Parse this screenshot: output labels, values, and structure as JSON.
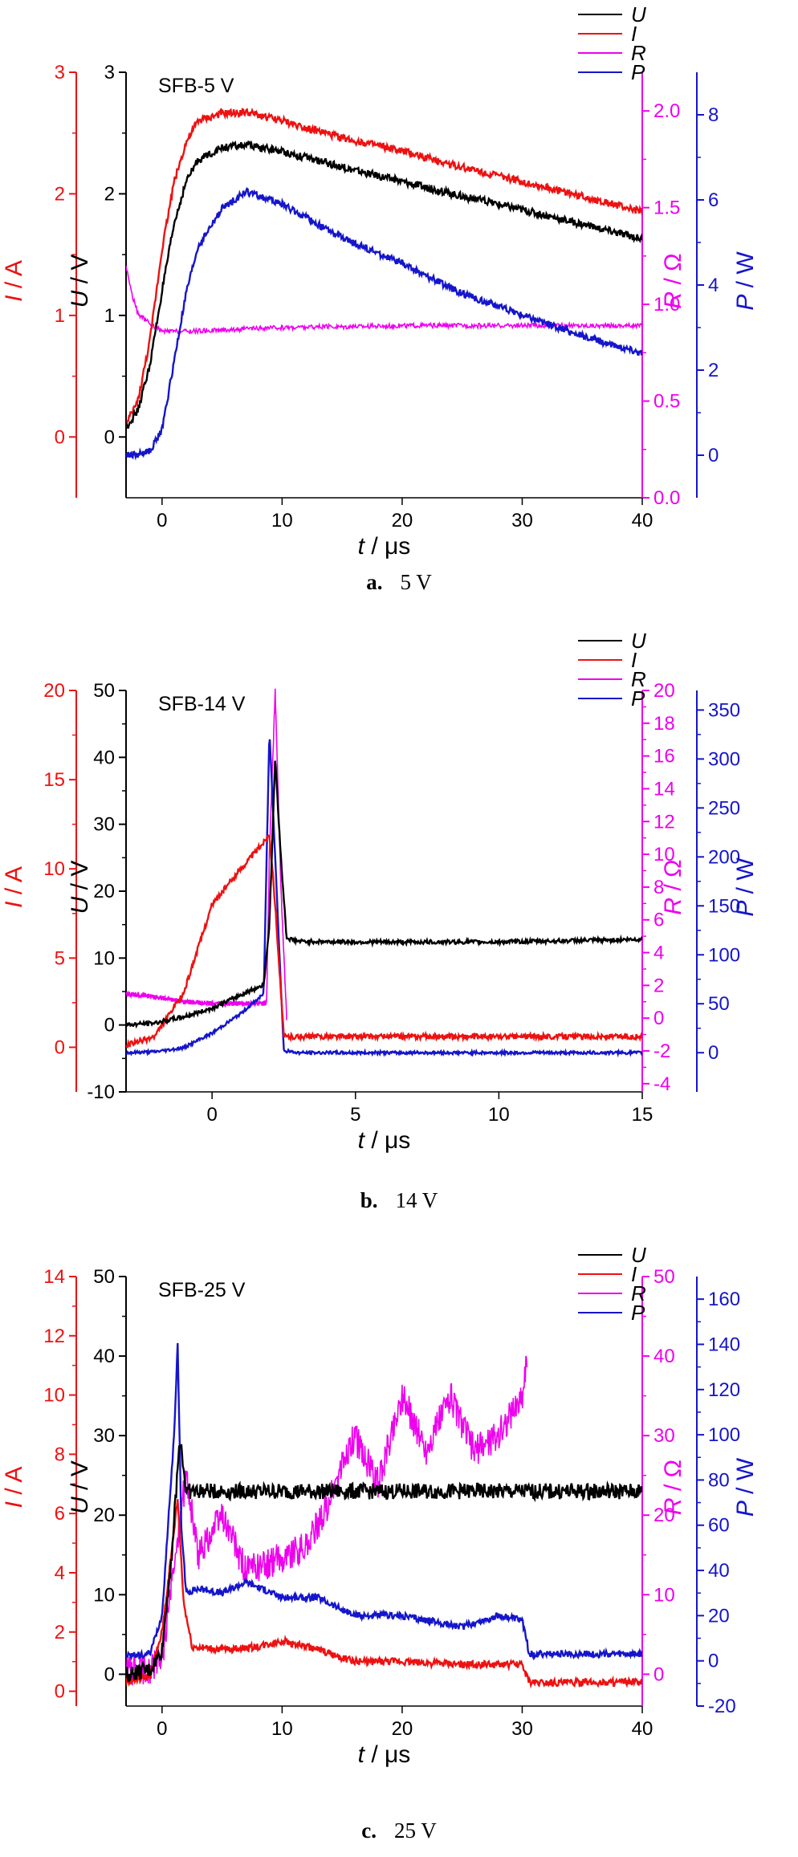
{
  "colors": {
    "U": "#000000",
    "I": "#ee1111",
    "R": "#ee00ee",
    "P": "#1515cc"
  },
  "chart_data": [
    {
      "type": "line",
      "title": "SFB-5 V",
      "caption_letter": "a.",
      "caption_text": "5 V",
      "xlabel": "t / μs",
      "xlim": [
        -3,
        40
      ],
      "xticks": [
        0,
        10,
        20,
        30,
        40
      ],
      "legend": [
        "U",
        "I",
        "R",
        "P"
      ],
      "legend_position": "top-right",
      "axes": {
        "I": {
          "label": "I / A",
          "lim": [
            -0.5,
            3
          ],
          "ticks": [
            0,
            1,
            2,
            3
          ]
        },
        "U": {
          "label": "U / V",
          "lim": [
            -0.5,
            3
          ],
          "ticks": [
            0,
            1,
            2,
            3
          ]
        },
        "R": {
          "label": "R / Ω",
          "lim": [
            0.0,
            2.2
          ],
          "ticks": [
            0.0,
            0.5,
            1.0,
            1.5,
            2.0
          ],
          "decimals": 1
        },
        "P": {
          "label": "P / W",
          "lim": [
            -1,
            9
          ],
          "ticks": [
            0,
            2,
            4,
            6,
            8
          ]
        }
      },
      "series": [
        {
          "name": "U",
          "axis": "U",
          "noise": 0.03,
          "points": [
            [
              -3,
              0.08
            ],
            [
              -2,
              0.22
            ],
            [
              -1,
              0.6
            ],
            [
              0,
              1.2
            ],
            [
              1,
              1.75
            ],
            [
              2,
              2.1
            ],
            [
              3,
              2.28
            ],
            [
              5,
              2.38
            ],
            [
              7,
              2.4
            ],
            [
              10,
              2.35
            ],
            [
              15,
              2.22
            ],
            [
              20,
              2.1
            ],
            [
              25,
              1.98
            ],
            [
              30,
              1.87
            ],
            [
              35,
              1.75
            ],
            [
              40,
              1.63
            ]
          ]
        },
        {
          "name": "I",
          "axis": "I",
          "noise": 0.03,
          "points": [
            [
              -3,
              0.1
            ],
            [
              -2,
              0.3
            ],
            [
              -1,
              0.8
            ],
            [
              0,
              1.55
            ],
            [
              1,
              2.1
            ],
            [
              2,
              2.42
            ],
            [
              3,
              2.6
            ],
            [
              5,
              2.66
            ],
            [
              7,
              2.67
            ],
            [
              10,
              2.6
            ],
            [
              15,
              2.46
            ],
            [
              20,
              2.35
            ],
            [
              25,
              2.22
            ],
            [
              30,
              2.1
            ],
            [
              35,
              1.98
            ],
            [
              40,
              1.85
            ]
          ]
        },
        {
          "name": "R",
          "axis": "R",
          "noise": 0.012,
          "points": [
            [
              -3,
              1.2
            ],
            [
              -2.5,
              1.05
            ],
            [
              -2,
              0.95
            ],
            [
              -1,
              0.9
            ],
            [
              0,
              0.86
            ],
            [
              2,
              0.86
            ],
            [
              10,
              0.88
            ],
            [
              20,
              0.89
            ],
            [
              30,
              0.89
            ],
            [
              40,
              0.89
            ]
          ]
        },
        {
          "name": "P",
          "axis": "P",
          "noise": 0.08,
          "points": [
            [
              -3,
              0.0
            ],
            [
              -2,
              0.02
            ],
            [
              -1,
              0.1
            ],
            [
              0,
              0.6
            ],
            [
              1,
              2.2
            ],
            [
              2,
              3.8
            ],
            [
              3,
              4.9
            ],
            [
              5,
              5.8
            ],
            [
              7,
              6.2
            ],
            [
              10,
              5.9
            ],
            [
              15,
              5.1
            ],
            [
              20,
              4.5
            ],
            [
              25,
              3.8
            ],
            [
              30,
              3.3
            ],
            [
              35,
              2.8
            ],
            [
              40,
              2.4
            ]
          ]
        }
      ]
    },
    {
      "type": "line",
      "title": "SFB-14 V",
      "caption_letter": "b.",
      "caption_text": "14 V",
      "xlabel": "t / μs",
      "xlim": [
        -3,
        15
      ],
      "xticks": [
        0,
        5,
        10,
        15
      ],
      "legend": [
        "U",
        "I",
        "R",
        "P"
      ],
      "legend_position": "top-right",
      "axes": {
        "I": {
          "label": "I / A",
          "lim": [
            -2.5,
            20
          ],
          "ticks": [
            0,
            5,
            10,
            15,
            20
          ]
        },
        "U": {
          "label": "U / V",
          "lim": [
            -10,
            50
          ],
          "ticks": [
            -10,
            0,
            10,
            20,
            30,
            40,
            50
          ]
        },
        "R": {
          "label": "R / Ω",
          "lim": [
            -4.5,
            20
          ],
          "ticks": [
            -4,
            -2,
            0,
            2,
            4,
            6,
            8,
            10,
            12,
            14,
            16,
            18,
            20
          ]
        },
        "P": {
          "label": "P / W",
          "lim": [
            -40,
            370
          ],
          "ticks": [
            0,
            50,
            100,
            150,
            200,
            250,
            300,
            350
          ]
        }
      },
      "series": [
        {
          "name": "U",
          "axis": "U",
          "noise": 0.3,
          "points": [
            [
              -3,
              0.0
            ],
            [
              -2,
              0.3
            ],
            [
              -1,
              1.2
            ],
            [
              0,
              2.5
            ],
            [
              1,
              4.5
            ],
            [
              1.8,
              6
            ],
            [
              2.0,
              15
            ],
            [
              2.2,
              40
            ],
            [
              2.4,
              25
            ],
            [
              2.6,
              13
            ],
            [
              3,
              12.5
            ],
            [
              5,
              12.4
            ],
            [
              10,
              12.4
            ],
            [
              15,
              12.8
            ]
          ]
        },
        {
          "name": "I",
          "axis": "I",
          "noise": 0.15,
          "points": [
            [
              -3,
              0.1
            ],
            [
              -2,
              0.6
            ],
            [
              -1,
              3
            ],
            [
              0,
              8
            ],
            [
              1,
              10
            ],
            [
              1.8,
              11.5
            ],
            [
              2.0,
              12
            ],
            [
              2.2,
              8
            ],
            [
              2.5,
              0.6
            ],
            [
              3,
              0.6
            ],
            [
              15,
              0.6
            ]
          ]
        },
        {
          "name": "R",
          "axis": "R",
          "noise": 0.15,
          "points": [
            [
              -3,
              1.5
            ],
            [
              -2,
              1.3
            ],
            [
              -1,
              1.0
            ],
            [
              0,
              0.9
            ],
            [
              1.5,
              0.9
            ],
            [
              1.9,
              0.9
            ],
            [
              2.0,
              10
            ],
            [
              2.2,
              20
            ],
            [
              2.4,
              8
            ],
            [
              2.6,
              0
            ]
          ]
        },
        {
          "name": "P",
          "axis": "P",
          "noise": 1.5,
          "points": [
            [
              -3,
              0
            ],
            [
              -2,
              1
            ],
            [
              -1,
              5
            ],
            [
              0,
              20
            ],
            [
              1,
              40
            ],
            [
              1.8,
              60
            ],
            [
              2.0,
              330
            ],
            [
              2.2,
              200
            ],
            [
              2.5,
              2
            ],
            [
              3,
              0
            ],
            [
              15,
              0
            ]
          ]
        }
      ]
    },
    {
      "type": "line",
      "title": "SFB-25 V",
      "caption_letter": "c.",
      "caption_text": "25 V",
      "xlabel": "t / μs",
      "xlim": [
        -3,
        40
      ],
      "xticks": [
        0,
        10,
        20,
        30,
        40
      ],
      "legend": [
        "U",
        "I",
        "R",
        "P"
      ],
      "legend_position": "top-right",
      "axes": {
        "I": {
          "label": "I / A",
          "lim": [
            -0.5,
            14
          ],
          "ticks": [
            0,
            2,
            4,
            6,
            8,
            10,
            12,
            14
          ]
        },
        "U": {
          "label": "U / V",
          "lim": [
            -4,
            50
          ],
          "ticks": [
            0,
            10,
            20,
            30,
            40,
            50
          ]
        },
        "R": {
          "label": "R / Ω",
          "lim": [
            -4,
            50
          ],
          "ticks": [
            0,
            10,
            20,
            30,
            40,
            50
          ]
        },
        "P": {
          "label": "P / W",
          "lim": [
            -20,
            170
          ],
          "ticks": [
            -20,
            0,
            20,
            40,
            60,
            80,
            100,
            120,
            140,
            160
          ]
        }
      },
      "series": [
        {
          "name": "U",
          "axis": "U",
          "noise": 1.0,
          "points": [
            [
              -3,
              0
            ],
            [
              -1,
              0.5
            ],
            [
              0,
              3
            ],
            [
              0.8,
              15
            ],
            [
              1.5,
              30
            ],
            [
              2,
              23
            ],
            [
              5,
              23
            ],
            [
              10,
              23
            ],
            [
              15,
              23
            ],
            [
              20,
              23
            ],
            [
              25,
              23
            ],
            [
              30,
              23
            ],
            [
              30.5,
              23
            ],
            [
              31,
              23
            ],
            [
              40,
              23
            ]
          ]
        },
        {
          "name": "I",
          "axis": "I",
          "noise": 0.12,
          "points": [
            [
              -3,
              0.3
            ],
            [
              -1,
              0.5
            ],
            [
              0,
              2
            ],
            [
              0.6,
              4
            ],
            [
              1.3,
              6.5
            ],
            [
              1.8,
              3
            ],
            [
              2.5,
              1.5
            ],
            [
              5,
              1.4
            ],
            [
              8,
              1.5
            ],
            [
              10,
              1.7
            ],
            [
              13,
              1.4
            ],
            [
              16,
              1.0
            ],
            [
              20,
              1.0
            ],
            [
              25,
              0.9
            ],
            [
              30,
              0.9
            ],
            [
              30.6,
              0.3
            ],
            [
              40,
              0.3
            ]
          ]
        },
        {
          "name": "R",
          "axis": "R",
          "noise": 2.0,
          "points": [
            [
              -3,
              0.5
            ],
            [
              -1,
              0.5
            ],
            [
              0,
              2
            ],
            [
              2,
              25
            ],
            [
              3,
              15
            ],
            [
              5,
              20
            ],
            [
              7,
              13
            ],
            [
              9,
              14
            ],
            [
              12,
              16
            ],
            [
              14,
              22
            ],
            [
              16,
              30
            ],
            [
              18,
              24
            ],
            [
              20,
              35
            ],
            [
              22,
              28
            ],
            [
              24,
              35
            ],
            [
              26,
              28
            ],
            [
              28,
              30
            ],
            [
              30,
              35
            ],
            [
              30.4,
              40
            ]
          ]
        },
        {
          "name": "P",
          "axis": "P",
          "noise": 1.5,
          "points": [
            [
              -3,
              2
            ],
            [
              -1,
              3
            ],
            [
              0,
              20
            ],
            [
              1,
              100
            ],
            [
              1.3,
              140
            ],
            [
              1.6,
              60
            ],
            [
              2,
              30
            ],
            [
              3,
              32
            ],
            [
              5,
              30
            ],
            [
              7,
              35
            ],
            [
              10,
              28
            ],
            [
              13,
              28
            ],
            [
              16,
              20
            ],
            [
              20,
              20
            ],
            [
              25,
              15
            ],
            [
              28,
              20
            ],
            [
              30,
              18
            ],
            [
              30.6,
              3
            ],
            [
              40,
              3
            ]
          ]
        }
      ]
    }
  ]
}
